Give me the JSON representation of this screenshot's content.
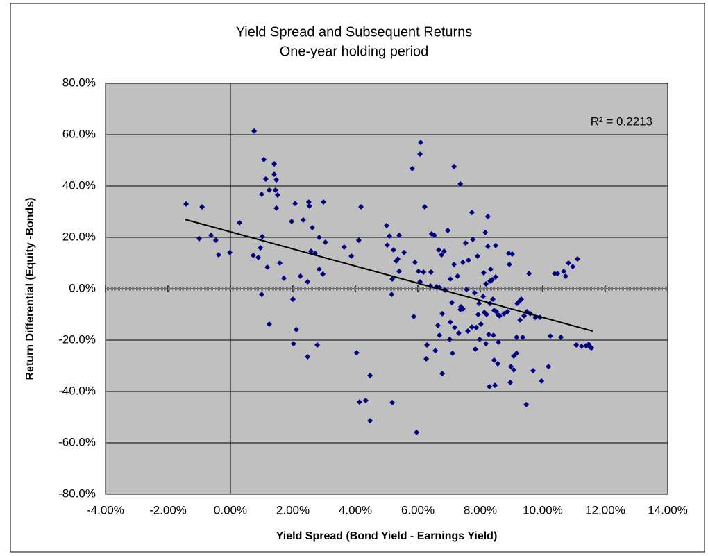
{
  "chart_data": {
    "type": "scatter",
    "title": "Yield Spread and Subsequent Returns",
    "subtitle": "One-year holding period",
    "xlabel": "Yield Spread (Bond Yield - Earnings Yield)",
    "ylabel": "Return Differential (Equity -Bonds)",
    "annotation": "R² = 0.2213",
    "color": "#000080",
    "plot_background": "#c0c0c0",
    "xlim": [
      -4,
      14
    ],
    "ylim": [
      -80,
      80
    ],
    "xticks": [
      {
        "value": -4,
        "label": "-4.00%"
      },
      {
        "value": -2,
        "label": "-2.00%"
      },
      {
        "value": 0,
        "label": "0.00%"
      },
      {
        "value": 2,
        "label": "2.00%"
      },
      {
        "value": 4,
        "label": "4.00%"
      },
      {
        "value": 6,
        "label": "6.00%"
      },
      {
        "value": 8,
        "label": "8.00%"
      },
      {
        "value": 10,
        "label": "10.00%"
      },
      {
        "value": 12,
        "label": "12.00%"
      },
      {
        "value": 14,
        "label": "14.00%"
      }
    ],
    "yticks": [
      {
        "value": -80,
        "label": "-80.0%"
      },
      {
        "value": -60,
        "label": "-60.0%"
      },
      {
        "value": -40,
        "label": "-40.0%"
      },
      {
        "value": -20,
        "label": "-20.0%"
      },
      {
        "value": 0,
        "label": "0.0%"
      },
      {
        "value": 20,
        "label": "20.0%"
      },
      {
        "value": 40,
        "label": "40.0%"
      },
      {
        "value": 60,
        "label": "60.0%"
      },
      {
        "value": 80,
        "label": "80.0%"
      }
    ],
    "grid": true,
    "x": [
      -1.42,
      -0.91,
      -1.0,
      -0.62,
      -0.47,
      -0.38,
      -0.02,
      0.29,
      0.76,
      0.73,
      0.89,
      0.96,
      1.0,
      1.02,
      1.07,
      1.0,
      1.13,
      1.18,
      1.24,
      1.24,
      1.4,
      1.4,
      1.44,
      1.47,
      1.51,
      1.47,
      1.58,
      1.71,
      1.96,
      2.0,
      2.07,
      2.02,
      2.11,
      2.24,
      2.33,
      2.47,
      2.47,
      2.51,
      2.53,
      2.62,
      2.58,
      2.71,
      2.78,
      2.84,
      2.84,
      2.96,
      2.98,
      3.04,
      3.64,
      3.87,
      4.04,
      4.11,
      4.18,
      4.13,
      4.33,
      4.47,
      4.47,
      5.0,
      5.02,
      5.09,
      5.16,
      5.18,
      5.18,
      5.22,
      5.31,
      5.36,
      5.4,
      5.4,
      5.56,
      5.82,
      5.87,
      5.91,
      5.96,
      6.02,
      6.07,
      6.09,
      6.07,
      6.18,
      6.22,
      6.27,
      6.29,
      6.4,
      6.42,
      6.44,
      6.53,
      6.56,
      6.6,
      6.64,
      6.67,
      6.69,
      6.69,
      6.76,
      6.78,
      6.78,
      6.84,
      6.87,
      6.96,
      7.02,
      7.04,
      7.04,
      7.09,
      7.11,
      7.16,
      7.16,
      7.18,
      7.27,
      7.31,
      7.36,
      7.36,
      7.38,
      7.44,
      7.44,
      7.53,
      7.56,
      7.6,
      7.62,
      7.73,
      7.73,
      7.76,
      7.82,
      7.84,
      7.87,
      7.91,
      7.93,
      7.96,
      7.98,
      8.02,
      8.09,
      8.11,
      8.13,
      8.18,
      8.16,
      8.18,
      8.2,
      8.24,
      8.24,
      8.27,
      8.29,
      8.31,
      8.31,
      8.33,
      8.38,
      8.4,
      8.42,
      8.44,
      8.44,
      8.47,
      8.49,
      8.49,
      8.51,
      8.56,
      8.58,
      8.58,
      8.62,
      8.76,
      8.87,
      8.91,
      8.93,
      8.96,
      8.98,
      9.02,
      9.07,
      9.07,
      9.16,
      9.18,
      9.16,
      9.27,
      9.27,
      9.31,
      9.36,
      9.4,
      9.47,
      9.49,
      9.56,
      9.6,
      9.69,
      9.76,
      9.91,
      9.96,
      10.18,
      10.24,
      10.38,
      10.47,
      10.58,
      10.67,
      10.73,
      10.82,
      10.96,
      11.11,
      11.07,
      11.24,
      11.38,
      11.47,
      11.51,
      11.56
    ],
    "values": [
      33.0,
      31.9,
      19.5,
      20.8,
      18.9,
      13.2,
      14.1,
      25.7,
      61.4,
      13.0,
      12.2,
      15.9,
      36.8,
      20.3,
      50.3,
      -2.2,
      42.7,
      8.4,
      38.4,
      -13.8,
      48.6,
      44.6,
      38.4,
      42.4,
      36.5,
      31.4,
      10.0,
      4.1,
      26.2,
      -4.1,
      33.2,
      -21.4,
      -15.9,
      4.9,
      26.8,
      2.7,
      -26.5,
      33.8,
      32.2,
      23.8,
      14.6,
      13.8,
      -21.9,
      20.0,
      7.6,
      5.7,
      33.8,
      18.1,
      16.2,
      12.7,
      -24.9,
      18.9,
      31.9,
      -44.1,
      -43.5,
      -33.8,
      -51.4,
      24.6,
      17.0,
      20.5,
      -2.2,
      3.8,
      -44.3,
      15.1,
      10.8,
      11.6,
      20.8,
      6.8,
      14.1,
      46.8,
      -10.8,
      10.3,
      -55.9,
      6.8,
      52.4,
      57.0,
      2.7,
      6.5,
      31.9,
      -27.3,
      -21.9,
      1.1,
      6.5,
      21.4,
      20.8,
      -24.1,
      0.8,
      -14.3,
      15.1,
      -18.1,
      0.5,
      13.2,
      -9.7,
      -33.0,
      14.6,
      -0.5,
      22.7,
      -19.7,
      -13.0,
      3.8,
      -5.4,
      -25.1,
      47.6,
      9.5,
      -15.1,
      4.9,
      -17.3,
      -8.1,
      40.8,
      -7.0,
      -7.8,
      10.3,
      17.8,
      -0.3,
      -16.5,
      11.1,
      29.7,
      -14.9,
      19.2,
      -1.6,
      -23.5,
      -15.1,
      12.7,
      -10.0,
      -5.7,
      -19.7,
      -13.8,
      -3.0,
      6.2,
      -9.2,
      1.9,
      21.9,
      -21.4,
      -10.0,
      28.1,
      16.5,
      -17.8,
      -38.1,
      3.0,
      -5.7,
      7.6,
      3.5,
      -4.1,
      -18.1,
      -8.4,
      -27.8,
      -37.6,
      4.6,
      16.8,
      -8.9,
      -29.2,
      -10.3,
      -20.8,
      -10.5,
      -9.7,
      -8.9,
      13.8,
      9.5,
      -36.5,
      -30.3,
      13.5,
      -31.6,
      -26.2,
      -25.1,
      -5.7,
      -18.9,
      -4.6,
      -12.2,
      -4.1,
      -18.9,
      -10.5,
      -45.1,
      -8.9,
      5.9,
      -9.7,
      -31.9,
      -11.1,
      -11.1,
      -35.9,
      -30.3,
      -18.4,
      5.9,
      5.9,
      -18.9,
      6.8,
      4.9,
      10.0,
      8.6,
      11.6,
      -21.9,
      -22.4,
      -22.2,
      -21.6,
      -22.7,
      -23.0
    ],
    "trendline": {
      "x": [
        -1.45,
        11.6
      ],
      "values": [
        27.0,
        -16.5
      ],
      "color": "#000000"
    }
  }
}
